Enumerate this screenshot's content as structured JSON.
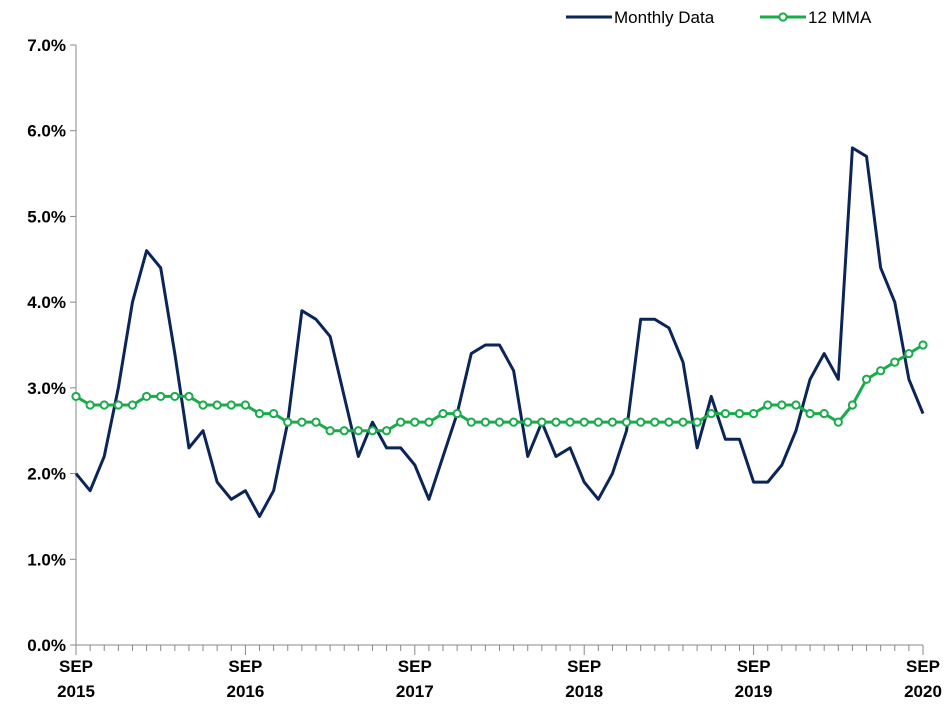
{
  "chart_data": {
    "type": "line",
    "title": "",
    "xlabel": "",
    "ylabel": "",
    "ylim": [
      0,
      7
    ],
    "grid": false,
    "legend_position": "top-right",
    "y_ticks": [
      "0.0%",
      "1.0%",
      "2.0%",
      "3.0%",
      "4.0%",
      "5.0%",
      "6.0%",
      "7.0%"
    ],
    "x_ticks": [
      {
        "month": "SEP",
        "year": "2015",
        "index": 0
      },
      {
        "month": "SEP",
        "year": "2016",
        "index": 12
      },
      {
        "month": "SEP",
        "year": "2017",
        "index": 24
      },
      {
        "month": "SEP",
        "year": "2018",
        "index": 36
      },
      {
        "month": "SEP",
        "year": "2019",
        "index": 48
      },
      {
        "month": "SEP",
        "year": "2020",
        "index": 60
      }
    ],
    "series": [
      {
        "name": "Monthly Data",
        "color": "#0b2559",
        "marker": "none",
        "values": [
          2.0,
          1.8,
          2.2,
          3.0,
          4.0,
          4.6,
          4.4,
          3.4,
          2.3,
          2.5,
          1.9,
          1.7,
          1.8,
          1.5,
          1.8,
          2.6,
          3.9,
          3.8,
          3.6,
          2.9,
          2.2,
          2.6,
          2.3,
          2.3,
          2.1,
          1.7,
          2.2,
          2.7,
          3.4,
          3.5,
          3.5,
          3.2,
          2.2,
          2.6,
          2.2,
          2.3,
          1.9,
          1.7,
          2.0,
          2.5,
          3.8,
          3.8,
          3.7,
          3.3,
          2.3,
          2.9,
          2.4,
          2.4,
          1.9,
          1.9,
          2.1,
          2.5,
          3.1,
          3.4,
          3.1,
          5.8,
          5.7,
          4.4,
          4.0,
          3.1,
          2.7
        ]
      },
      {
        "name": "12 MMA",
        "color": "#1aab4b",
        "marker": "circle",
        "values": [
          2.9,
          2.8,
          2.8,
          2.8,
          2.8,
          2.9,
          2.9,
          2.9,
          2.9,
          2.8,
          2.8,
          2.8,
          2.8,
          2.7,
          2.7,
          2.6,
          2.6,
          2.6,
          2.5,
          2.5,
          2.5,
          2.5,
          2.5,
          2.6,
          2.6,
          2.6,
          2.7,
          2.7,
          2.6,
          2.6,
          2.6,
          2.6,
          2.6,
          2.6,
          2.6,
          2.6,
          2.6,
          2.6,
          2.6,
          2.6,
          2.6,
          2.6,
          2.6,
          2.6,
          2.6,
          2.7,
          2.7,
          2.7,
          2.7,
          2.8,
          2.8,
          2.8,
          2.7,
          2.7,
          2.6,
          2.8,
          3.1,
          3.2,
          3.3,
          3.4,
          3.5
        ]
      }
    ]
  }
}
